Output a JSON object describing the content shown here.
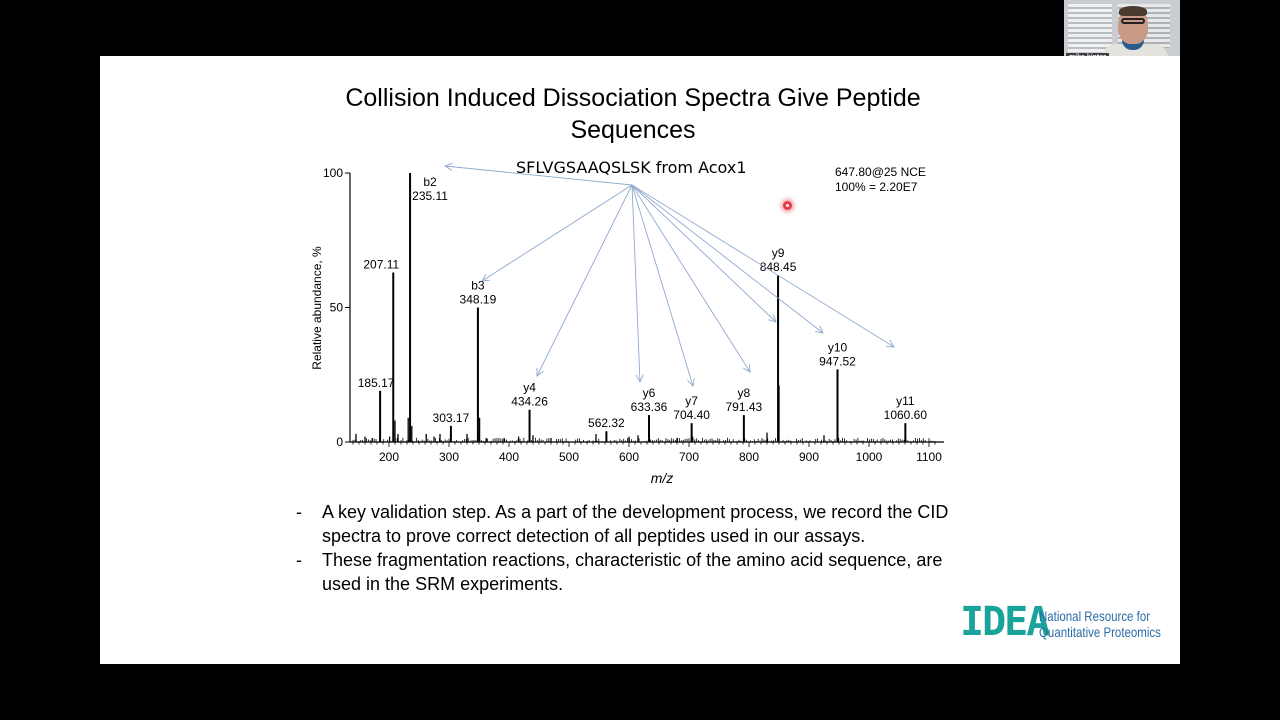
{
  "slide": {
    "title": "Collision Induced Dissociation Spectra Give Peptide Sequences",
    "peptide_label": "SFLVGSAAQSLSK from Acox1",
    "params_line1": "647.80@25 NCE",
    "params_line2": "100% = 2.20E7",
    "bullets": [
      "A key validation step.  As a part of the development process, we record the CID spectra to prove correct detection of all peptides used in our assays.",
      "These fragmentation reactions, characteristic of the amino acid sequence, are used in the SRM experiments."
    ],
    "bullet_marker": "-",
    "logo": {
      "mark": "IDEA",
      "line1": "National Resource for",
      "line2": "Quantitative Proteomics"
    }
  },
  "webcam": {
    "participant_name": "mike kinter"
  },
  "colors": {
    "background": "#000000",
    "slide": "#ffffff",
    "arrow": "#8fa9cf",
    "logo_teal": "#1aa39a",
    "logo_blue": "#2b6da8",
    "pointer": "#e83b4a"
  },
  "chart_data": {
    "type": "bar",
    "title": "SFLVGSAAQSLSK from Acox1",
    "subtitle": "647.80@25 NCE; 100% = 2.20E7",
    "xlabel": "m/z",
    "ylabel": "Relative abundance, %",
    "xlim": [
      135,
      1115
    ],
    "ylim": [
      0,
      100
    ],
    "xticks": [
      200,
      300,
      400,
      500,
      600,
      700,
      800,
      900,
      1000,
      1100
    ],
    "yticks": [
      0,
      50,
      100
    ],
    "grid": false,
    "legend": null,
    "labeled_peaks": [
      {
        "ion": "",
        "mz": 185.17,
        "label": "185.17",
        "intensity": 19
      },
      {
        "ion": "",
        "mz": 207.11,
        "label": "207.11",
        "intensity": 63
      },
      {
        "ion": "b2",
        "mz": 235.11,
        "label": "235.11",
        "intensity": 100
      },
      {
        "ion": "",
        "mz": 303.17,
        "label": "303.17",
        "intensity": 6
      },
      {
        "ion": "b3",
        "mz": 348.19,
        "label": "348.19",
        "intensity": 50
      },
      {
        "ion": "y4",
        "mz": 434.26,
        "label": "434.26",
        "intensity": 12
      },
      {
        "ion": "",
        "mz": 562.32,
        "label": "562.32",
        "intensity": 4
      },
      {
        "ion": "y6",
        "mz": 633.36,
        "label": "633.36",
        "intensity": 10
      },
      {
        "ion": "y7",
        "mz": 704.4,
        "label": "704.40",
        "intensity": 7
      },
      {
        "ion": "y8",
        "mz": 791.43,
        "label": "791.43",
        "intensity": 10
      },
      {
        "ion": "y9",
        "mz": 848.45,
        "label": "848.45",
        "intensity": 62
      },
      {
        "ion": "y10",
        "mz": 947.52,
        "label": "947.52",
        "intensity": 27
      },
      {
        "ion": "y11",
        "mz": 1060.6,
        "label": "1060.60",
        "intensity": 7
      }
    ],
    "minor_peaks": [
      {
        "mz": 145,
        "intensity": 3
      },
      {
        "mz": 160,
        "intensity": 2
      },
      {
        "mz": 172,
        "intensity": 1.5
      },
      {
        "mz": 201,
        "intensity": 2
      },
      {
        "mz": 210,
        "intensity": 8
      },
      {
        "mz": 215,
        "intensity": 3
      },
      {
        "mz": 232,
        "intensity": 9
      },
      {
        "mz": 238,
        "intensity": 6
      },
      {
        "mz": 262,
        "intensity": 3
      },
      {
        "mz": 275,
        "intensity": 2
      },
      {
        "mz": 285,
        "intensity": 3
      },
      {
        "mz": 330,
        "intensity": 3
      },
      {
        "mz": 351,
        "intensity": 9
      },
      {
        "mz": 362,
        "intensity": 1.5
      },
      {
        "mz": 392,
        "intensity": 1.5
      },
      {
        "mz": 416,
        "intensity": 2
      },
      {
        "mz": 440,
        "intensity": 2.5
      },
      {
        "mz": 470,
        "intensity": 1.5
      },
      {
        "mz": 545,
        "intensity": 3
      },
      {
        "mz": 600,
        "intensity": 2
      },
      {
        "mz": 615,
        "intensity": 2.5
      },
      {
        "mz": 680,
        "intensity": 1.5
      },
      {
        "mz": 706,
        "intensity": 2
      },
      {
        "mz": 830,
        "intensity": 3.5
      },
      {
        "mz": 850,
        "intensity": 21
      },
      {
        "mz": 925,
        "intensity": 2.5
      },
      {
        "mz": 948,
        "intensity": 11
      }
    ],
    "fragment_arrows_origin": "peptide label",
    "fragment_arrow_targets": [
      "b2",
      "b3",
      "y4",
      "y6",
      "y7",
      "y8",
      "y9",
      "y10",
      "y11"
    ]
  }
}
